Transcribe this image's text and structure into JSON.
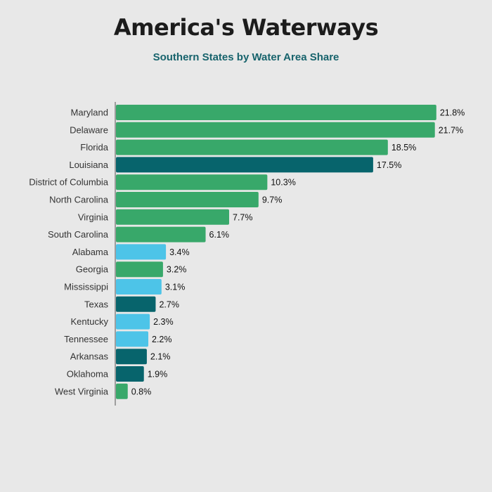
{
  "title": "America's Waterways",
  "subtitle": "Southern States by Water Area Share",
  "colors": {
    "background": "#e8e8e8",
    "green": "#38a86a",
    "dark_teal": "#07646c",
    "light_blue": "#4dc4e8",
    "subtitle": "#17636c",
    "axis": "#555555"
  },
  "chart_data": {
    "type": "bar",
    "orientation": "horizontal",
    "title": "America's Waterways",
    "subtitle": "Southern States by Water Area Share",
    "value_suffix": "%",
    "categories": [
      "Maryland",
      "Delaware",
      "Florida",
      "Louisiana",
      "District of Columbia",
      "North Carolina",
      "Virginia",
      "South Carolina",
      "Alabama",
      "Georgia",
      "Mississippi",
      "Texas",
      "Kentucky",
      "Tennessee",
      "Arkansas",
      "Oklahoma",
      "West Virginia"
    ],
    "values": [
      21.8,
      21.7,
      18.5,
      17.5,
      10.3,
      9.7,
      7.7,
      6.1,
      3.4,
      3.2,
      3.1,
      2.7,
      2.3,
      2.2,
      2.1,
      1.9,
      0.8
    ],
    "value_labels": [
      "21.8%",
      "21.7%",
      "18.5%",
      "17.5%",
      "10.3%",
      "9.7%",
      "7.7%",
      "6.1%",
      "3.4%",
      "3.2%",
      "3.1%",
      "2.7%",
      "2.3%",
      "2.2%",
      "2.1%",
      "1.9%",
      "0.8%"
    ],
    "bar_colors": [
      "green",
      "green",
      "green",
      "dark_teal",
      "green",
      "green",
      "green",
      "green",
      "light_blue",
      "green",
      "light_blue",
      "dark_teal",
      "light_blue",
      "light_blue",
      "dark_teal",
      "dark_teal",
      "green"
    ],
    "xlim": [
      0,
      22
    ],
    "grid": false,
    "legend": "none"
  }
}
